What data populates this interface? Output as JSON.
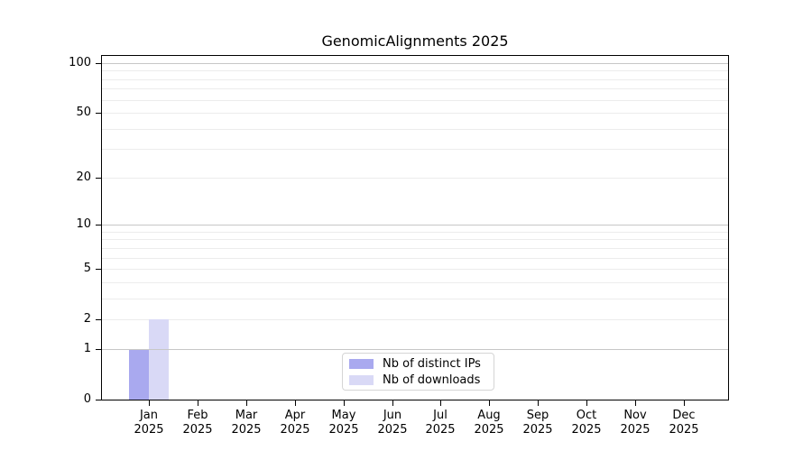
{
  "figure": {
    "title": "GenomicAlignments 2025"
  },
  "chart_data": {
    "type": "bar",
    "title": "GenomicAlignments 2025",
    "scale": "log1p",
    "ylim": [
      0,
      100
    ],
    "yticks": [
      0,
      1,
      2,
      5,
      10,
      20,
      50,
      100
    ],
    "minor_grid_values": [
      2,
      3,
      4,
      5,
      6,
      7,
      8,
      9,
      20,
      30,
      40,
      50,
      60,
      70,
      80,
      90
    ],
    "major_grid_values": [
      1,
      10,
      100
    ],
    "grid": true,
    "legend_position": "lower center",
    "categories": [
      {
        "month": "Jan",
        "year": "2025"
      },
      {
        "month": "Feb",
        "year": "2025"
      },
      {
        "month": "Mar",
        "year": "2025"
      },
      {
        "month": "Apr",
        "year": "2025"
      },
      {
        "month": "May",
        "year": "2025"
      },
      {
        "month": "Jun",
        "year": "2025"
      },
      {
        "month": "Jul",
        "year": "2025"
      },
      {
        "month": "Aug",
        "year": "2025"
      },
      {
        "month": "Sep",
        "year": "2025"
      },
      {
        "month": "Oct",
        "year": "2025"
      },
      {
        "month": "Nov",
        "year": "2025"
      },
      {
        "month": "Dec",
        "year": "2025"
      }
    ],
    "series": [
      {
        "name": "Nb of distinct IPs",
        "color": "#a9a9ef",
        "values": [
          1,
          0,
          0,
          0,
          0,
          0,
          0,
          0,
          0,
          0,
          0,
          0
        ]
      },
      {
        "name": "Nb of downloads",
        "color": "#d9d9f6",
        "values": [
          2,
          0,
          0,
          0,
          0,
          0,
          0,
          0,
          0,
          0,
          0,
          0
        ]
      }
    ],
    "colors": {
      "grid_major": "#c7c7c7",
      "grid_minor": "#ececec",
      "axis": "#000000",
      "background": "#ffffff",
      "legend_border": "#d5d5d5"
    }
  }
}
